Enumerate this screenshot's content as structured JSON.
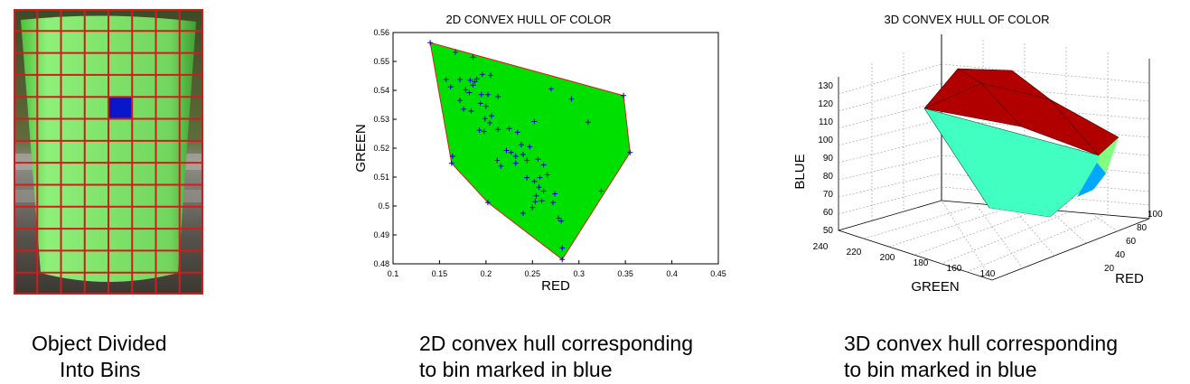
{
  "captions": {
    "object_bins": [
      "Object Divided",
      "Into Bins"
    ],
    "hull_2d": [
      "2D convex hull corresponding",
      "to bin marked in blue"
    ],
    "hull_3d": [
      "3D convex hull corresponding",
      "to bin marked in blue"
    ]
  },
  "photo": {
    "grid_cols": 8,
    "grid_rows": 13,
    "highlight_bin": {
      "col": 4,
      "row": 4
    },
    "colors": {
      "cup": "#7fe36a",
      "grid": "#d11c1c",
      "highlight": "#0a17c8"
    }
  },
  "chart_data": [
    {
      "type": "scatter",
      "title": "2D CONVEX HULL OF COLOR",
      "xlabel": "RED",
      "ylabel": "GREEN",
      "xlim": [
        0.1,
        0.45
      ],
      "ylim": [
        0.48,
        0.56
      ],
      "xticks": [
        "0.1",
        "0.15",
        "0.2",
        "0.25",
        "0.3",
        "0.35",
        "0.4",
        "0.45"
      ],
      "yticks": [
        "0.48",
        "0.49",
        "0.5",
        "0.51",
        "0.52",
        "0.53",
        "0.54",
        "0.55",
        "0.56"
      ],
      "hull": [
        [
          0.14,
          0.5565
        ],
        [
          0.348,
          0.5382
        ],
        [
          0.355,
          0.5185
        ],
        [
          0.282,
          0.4815
        ],
        [
          0.202,
          0.5012
        ],
        [
          0.163,
          0.5148
        ]
      ],
      "points": [
        [
          0.14,
          0.5565
        ],
        [
          0.348,
          0.5382
        ],
        [
          0.355,
          0.5185
        ],
        [
          0.282,
          0.4815
        ],
        [
          0.202,
          0.5012
        ],
        [
          0.163,
          0.5148
        ],
        [
          0.167,
          0.5532
        ],
        [
          0.186,
          0.5515
        ],
        [
          0.157,
          0.5438
        ],
        [
          0.162,
          0.5412
        ],
        [
          0.172,
          0.5438
        ],
        [
          0.183,
          0.5435
        ],
        [
          0.186,
          0.5418
        ],
        [
          0.188,
          0.543
        ],
        [
          0.19,
          0.544
        ],
        [
          0.196,
          0.5455
        ],
        [
          0.205,
          0.5452
        ],
        [
          0.178,
          0.5402
        ],
        [
          0.172,
          0.5365
        ],
        [
          0.182,
          0.5392
        ],
        [
          0.195,
          0.5385
        ],
        [
          0.202,
          0.5385
        ],
        [
          0.213,
          0.5378
        ],
        [
          0.176,
          0.5335
        ],
        [
          0.184,
          0.5328
        ],
        [
          0.194,
          0.5355
        ],
        [
          0.2,
          0.5345
        ],
        [
          0.206,
          0.5312
        ],
        [
          0.199,
          0.5302
        ],
        [
          0.204,
          0.5288
        ],
        [
          0.193,
          0.5262
        ],
        [
          0.198,
          0.5258
        ],
        [
          0.213,
          0.5265
        ],
        [
          0.225,
          0.5268
        ],
        [
          0.234,
          0.5255
        ],
        [
          0.252,
          0.5292
        ],
        [
          0.27,
          0.5405
        ],
        [
          0.292,
          0.537
        ],
        [
          0.31,
          0.529
        ],
        [
          0.238,
          0.5212
        ],
        [
          0.222,
          0.5192
        ],
        [
          0.227,
          0.5185
        ],
        [
          0.232,
          0.5172
        ],
        [
          0.24,
          0.5178
        ],
        [
          0.247,
          0.5205
        ],
        [
          0.212,
          0.5158
        ],
        [
          0.216,
          0.5138
        ],
        [
          0.232,
          0.5148
        ],
        [
          0.244,
          0.5158
        ],
        [
          0.256,
          0.5162
        ],
        [
          0.262,
          0.5142
        ],
        [
          0.244,
          0.5098
        ],
        [
          0.252,
          0.5085
        ],
        [
          0.258,
          0.5098
        ],
        [
          0.266,
          0.5108
        ],
        [
          0.257,
          0.5065
        ],
        [
          0.262,
          0.5052
        ],
        [
          0.254,
          0.5035
        ],
        [
          0.26,
          0.5018
        ],
        [
          0.272,
          0.5012
        ],
        [
          0.274,
          0.5042
        ],
        [
          0.253,
          0.5015
        ],
        [
          0.24,
          0.4975
        ],
        [
          0.25,
          0.4995
        ],
        [
          0.278,
          0.4958
        ],
        [
          0.281,
          0.4948
        ],
        [
          0.324,
          0.5052
        ],
        [
          0.164,
          0.5172
        ],
        [
          0.282,
          0.4855
        ]
      ],
      "colors": {
        "fill": "#00e000",
        "edge": "#e01a1a",
        "marker": "#0000cc"
      }
    },
    {
      "type": "other",
      "title": "3D CONVEX HULL OF COLOR",
      "xlabel": "GREEN",
      "ylabel": "RED",
      "zlabel": "BLUE",
      "green_ticks": [
        "240",
        "220",
        "200",
        "180",
        "160",
        "140"
      ],
      "red_ticks": [
        "20",
        "40",
        "60",
        "80",
        "100"
      ],
      "blue_ticks": [
        "50",
        "60",
        "70",
        "80",
        "90",
        "100",
        "110",
        "120",
        "130"
      ],
      "colors": {
        "top": "#b00000",
        "front": "#40ffc0",
        "side": "#00a8ff",
        "bottom": "#0010a0",
        "right": "#80ff80"
      }
    }
  ]
}
